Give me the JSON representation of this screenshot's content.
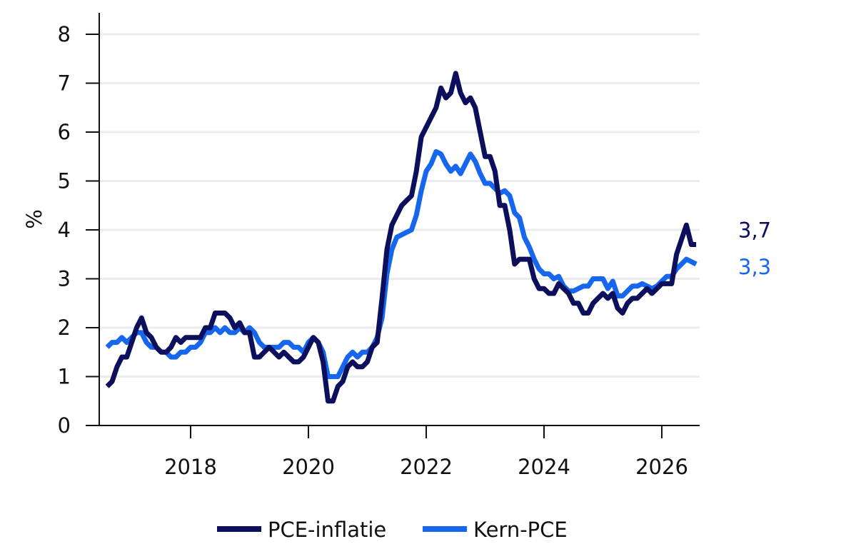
{
  "chart_data": {
    "type": "line",
    "title": "",
    "xlabel": "",
    "ylabel": "%",
    "ylim": [
      0,
      8
    ],
    "yticks": [
      "0",
      "1",
      "2",
      "3",
      "4",
      "5",
      "6",
      "7",
      "8"
    ],
    "xticks": [
      "2018",
      "2020",
      "2022",
      "2024",
      "2026"
    ],
    "grid": "horizontal",
    "legend": {
      "placement": "bottom-center"
    },
    "series": [
      {
        "name": "PCE-inflatie",
        "color": "#0b0f5c",
        "end_label": "3,7",
        "points": [
          [
            "2016-08",
            0.8
          ],
          [
            "2016-09",
            0.9
          ],
          [
            "2016-10",
            1.2
          ],
          [
            "2016-11",
            1.4
          ],
          [
            "2016-12",
            1.4
          ],
          [
            "2017-01",
            1.7
          ],
          [
            "2017-02",
            2.0
          ],
          [
            "2017-03",
            2.2
          ],
          [
            "2017-04",
            1.9
          ],
          [
            "2017-05",
            1.8
          ],
          [
            "2017-06",
            1.6
          ],
          [
            "2017-07",
            1.5
          ],
          [
            "2017-08",
            1.5
          ],
          [
            "2017-09",
            1.6
          ],
          [
            "2017-10",
            1.8
          ],
          [
            "2017-11",
            1.7
          ],
          [
            "2017-12",
            1.8
          ],
          [
            "2018-01",
            1.8
          ],
          [
            "2018-02",
            1.8
          ],
          [
            "2018-03",
            1.8
          ],
          [
            "2018-04",
            2.0
          ],
          [
            "2018-05",
            2.0
          ],
          [
            "2018-06",
            2.3
          ],
          [
            "2018-07",
            2.3
          ],
          [
            "2018-08",
            2.3
          ],
          [
            "2018-09",
            2.2
          ],
          [
            "2018-10",
            2.0
          ],
          [
            "2018-11",
            2.1
          ],
          [
            "2018-12",
            1.9
          ],
          [
            "2019-01",
            1.9
          ],
          [
            "2019-02",
            1.4
          ],
          [
            "2019-03",
            1.4
          ],
          [
            "2019-04",
            1.5
          ],
          [
            "2019-05",
            1.6
          ],
          [
            "2019-06",
            1.5
          ],
          [
            "2019-07",
            1.4
          ],
          [
            "2019-08",
            1.5
          ],
          [
            "2019-09",
            1.4
          ],
          [
            "2019-10",
            1.3
          ],
          [
            "2019-11",
            1.3
          ],
          [
            "2019-12",
            1.4
          ],
          [
            "2020-01",
            1.6
          ],
          [
            "2020-02",
            1.8
          ],
          [
            "2020-03",
            1.7
          ],
          [
            "2020-04",
            1.3
          ],
          [
            "2020-05",
            0.5
          ],
          [
            "2020-06",
            0.5
          ],
          [
            "2020-07",
            0.8
          ],
          [
            "2020-08",
            0.9
          ],
          [
            "2020-09",
            1.2
          ],
          [
            "2020-10",
            1.3
          ],
          [
            "2020-11",
            1.2
          ],
          [
            "2020-12",
            1.2
          ],
          [
            "2021-01",
            1.3
          ],
          [
            "2021-02",
            1.6
          ],
          [
            "2021-03",
            1.7
          ],
          [
            "2021-04",
            2.6
          ],
          [
            "2021-05",
            3.6
          ],
          [
            "2021-06",
            4.1
          ],
          [
            "2021-07",
            4.3
          ],
          [
            "2021-08",
            4.5
          ],
          [
            "2021-09",
            4.6
          ],
          [
            "2021-10",
            4.7
          ],
          [
            "2021-11",
            5.2
          ],
          [
            "2021-12",
            5.9
          ],
          [
            "2022-01",
            6.1
          ],
          [
            "2022-02",
            6.3
          ],
          [
            "2022-03",
            6.5
          ],
          [
            "2022-04",
            6.9
          ],
          [
            "2022-05",
            6.7
          ],
          [
            "2022-06",
            6.8
          ],
          [
            "2022-07",
            7.2
          ],
          [
            "2022-08",
            6.8
          ],
          [
            "2022-09",
            6.6
          ],
          [
            "2022-10",
            6.7
          ],
          [
            "2022-11",
            6.5
          ],
          [
            "2022-12",
            6.0
          ],
          [
            "2023-01",
            5.5
          ],
          [
            "2023-02",
            5.5
          ],
          [
            "2023-03",
            5.2
          ],
          [
            "2023-04",
            4.5
          ],
          [
            "2023-05",
            4.5
          ],
          [
            "2023-06",
            4.0
          ],
          [
            "2023-07",
            3.3
          ],
          [
            "2023-08",
            3.4
          ],
          [
            "2023-09",
            3.4
          ],
          [
            "2023-10",
            3.4
          ],
          [
            "2023-11",
            3.0
          ],
          [
            "2023-12",
            2.8
          ],
          [
            "2024-01",
            2.8
          ],
          [
            "2024-02",
            2.7
          ],
          [
            "2024-03",
            2.7
          ],
          [
            "2024-04",
            2.9
          ],
          [
            "2024-05",
            2.8
          ],
          [
            "2024-06",
            2.7
          ],
          [
            "2024-07",
            2.5
          ],
          [
            "2024-08",
            2.5
          ],
          [
            "2024-09",
            2.3
          ],
          [
            "2024-10",
            2.3
          ],
          [
            "2024-11",
            2.5
          ],
          [
            "2024-12",
            2.6
          ],
          [
            "2025-01",
            2.7
          ],
          [
            "2025-02",
            2.6
          ],
          [
            "2025-03",
            2.7
          ],
          [
            "2025-04",
            2.4
          ],
          [
            "2025-05",
            2.3
          ],
          [
            "2025-06",
            2.5
          ],
          [
            "2025-07",
            2.6
          ],
          [
            "2025-08",
            2.6
          ],
          [
            "2025-09",
            2.7
          ],
          [
            "2025-10",
            2.8
          ],
          [
            "2025-11",
            2.7
          ],
          [
            "2025-12",
            2.8
          ],
          [
            "2026-01",
            2.9
          ],
          [
            "2026-02",
            2.9
          ],
          [
            "2026-03",
            2.9
          ],
          [
            "2026-04",
            3.5
          ],
          [
            "2026-05",
            3.8
          ],
          [
            "2026-06",
            4.1
          ],
          [
            "2026-07",
            3.7
          ],
          [
            "2026-08",
            3.7
          ]
        ]
      },
      {
        "name": "Kern-PCE",
        "color": "#1766ef",
        "end_label": "3,3",
        "points": [
          [
            "2016-08",
            1.6
          ],
          [
            "2016-09",
            1.7
          ],
          [
            "2016-10",
            1.7
          ],
          [
            "2016-11",
            1.8
          ],
          [
            "2016-12",
            1.7
          ],
          [
            "2017-01",
            1.8
          ],
          [
            "2017-02",
            1.9
          ],
          [
            "2017-03",
            1.9
          ],
          [
            "2017-04",
            1.7
          ],
          [
            "2017-05",
            1.6
          ],
          [
            "2017-06",
            1.6
          ],
          [
            "2017-07",
            1.5
          ],
          [
            "2017-08",
            1.5
          ],
          [
            "2017-09",
            1.4
          ],
          [
            "2017-10",
            1.4
          ],
          [
            "2017-11",
            1.5
          ],
          [
            "2017-12",
            1.5
          ],
          [
            "2018-01",
            1.6
          ],
          [
            "2018-02",
            1.6
          ],
          [
            "2018-03",
            1.7
          ],
          [
            "2018-04",
            1.9
          ],
          [
            "2018-05",
            1.9
          ],
          [
            "2018-06",
            2.0
          ],
          [
            "2018-07",
            1.9
          ],
          [
            "2018-08",
            2.0
          ],
          [
            "2018-09",
            1.9
          ],
          [
            "2018-10",
            1.9
          ],
          [
            "2018-11",
            2.0
          ],
          [
            "2018-12",
            1.9
          ],
          [
            "2019-01",
            2.0
          ],
          [
            "2019-02",
            1.9
          ],
          [
            "2019-03",
            1.7
          ],
          [
            "2019-04",
            1.6
          ],
          [
            "2019-05",
            1.6
          ],
          [
            "2019-06",
            1.6
          ],
          [
            "2019-07",
            1.6
          ],
          [
            "2019-08",
            1.7
          ],
          [
            "2019-09",
            1.7
          ],
          [
            "2019-10",
            1.6
          ],
          [
            "2019-11",
            1.6
          ],
          [
            "2019-12",
            1.5
          ],
          [
            "2020-01",
            1.7
          ],
          [
            "2020-02",
            1.8
          ],
          [
            "2020-03",
            1.7
          ],
          [
            "2020-04",
            1.5
          ],
          [
            "2020-05",
            1.0
          ],
          [
            "2020-06",
            1.0
          ],
          [
            "2020-07",
            1.0
          ],
          [
            "2020-08",
            1.2
          ],
          [
            "2020-09",
            1.4
          ],
          [
            "2020-10",
            1.5
          ],
          [
            "2020-11",
            1.4
          ],
          [
            "2020-12",
            1.5
          ],
          [
            "2021-01",
            1.5
          ],
          [
            "2021-02",
            1.6
          ],
          [
            "2021-03",
            1.8
          ],
          [
            "2021-04",
            2.2
          ],
          [
            "2021-05",
            3.1
          ],
          [
            "2021-06",
            3.6
          ],
          [
            "2021-07",
            3.85
          ],
          [
            "2021-08",
            3.9
          ],
          [
            "2021-09",
            3.95
          ],
          [
            "2021-10",
            4.0
          ],
          [
            "2021-11",
            4.3
          ],
          [
            "2021-12",
            4.8
          ],
          [
            "2022-01",
            5.2
          ],
          [
            "2022-02",
            5.35
          ],
          [
            "2022-03",
            5.6
          ],
          [
            "2022-04",
            5.55
          ],
          [
            "2022-05",
            5.35
          ],
          [
            "2022-06",
            5.2
          ],
          [
            "2022-07",
            5.3
          ],
          [
            "2022-08",
            5.15
          ],
          [
            "2022-09",
            5.35
          ],
          [
            "2022-10",
            5.55
          ],
          [
            "2022-11",
            5.4
          ],
          [
            "2022-12",
            5.15
          ],
          [
            "2023-01",
            4.95
          ],
          [
            "2023-02",
            4.95
          ],
          [
            "2023-03",
            4.85
          ],
          [
            "2023-04",
            4.75
          ],
          [
            "2023-05",
            4.8
          ],
          [
            "2023-06",
            4.7
          ],
          [
            "2023-07",
            4.35
          ],
          [
            "2023-08",
            4.25
          ],
          [
            "2023-09",
            3.85
          ],
          [
            "2023-10",
            3.65
          ],
          [
            "2023-11",
            3.4
          ],
          [
            "2023-12",
            3.2
          ],
          [
            "2024-01",
            3.1
          ],
          [
            "2024-02",
            3.1
          ],
          [
            "2024-03",
            3.0
          ],
          [
            "2024-04",
            3.05
          ],
          [
            "2024-05",
            2.85
          ],
          [
            "2024-06",
            2.75
          ],
          [
            "2024-07",
            2.75
          ],
          [
            "2024-08",
            2.8
          ],
          [
            "2024-09",
            2.85
          ],
          [
            "2024-10",
            2.85
          ],
          [
            "2024-11",
            3.0
          ],
          [
            "2024-12",
            3.0
          ],
          [
            "2025-01",
            3.0
          ],
          [
            "2025-02",
            2.8
          ],
          [
            "2025-03",
            2.95
          ],
          [
            "2025-04",
            2.65
          ],
          [
            "2025-05",
            2.65
          ],
          [
            "2025-06",
            2.75
          ],
          [
            "2025-07",
            2.85
          ],
          [
            "2025-08",
            2.85
          ],
          [
            "2025-09",
            2.9
          ],
          [
            "2025-10",
            2.85
          ],
          [
            "2025-11",
            2.8
          ],
          [
            "2025-12",
            2.85
          ],
          [
            "2026-01",
            2.95
          ],
          [
            "2026-02",
            3.05
          ],
          [
            "2026-03",
            3.05
          ],
          [
            "2026-04",
            3.2
          ],
          [
            "2026-05",
            3.3
          ],
          [
            "2026-06",
            3.4
          ],
          [
            "2026-07",
            3.35
          ],
          [
            "2026-08",
            3.3
          ]
        ]
      }
    ]
  }
}
